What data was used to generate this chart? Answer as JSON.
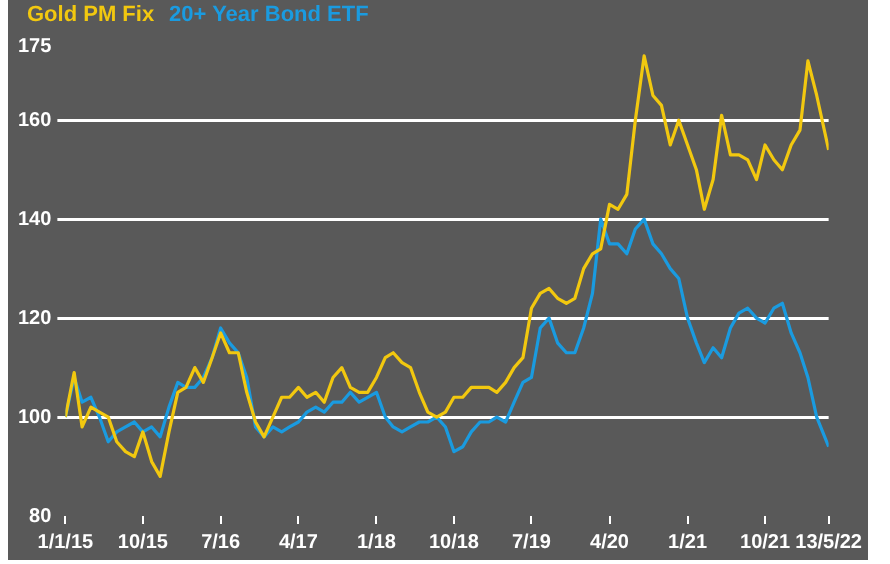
{
  "chart_data": {
    "type": "line",
    "legend": "top left",
    "grid": "y",
    "xlim": [
      "2015-01-01",
      "2022-05-13"
    ],
    "ylim": [
      80,
      175
    ],
    "yticks": [
      80,
      100,
      120,
      140,
      160,
      175
    ],
    "xticks": [
      {
        "value": "2015-01-01",
        "label": "1/1/15"
      },
      {
        "value": "2015-10-01",
        "label": "10/15"
      },
      {
        "value": "2016-07-01",
        "label": "7/16"
      },
      {
        "value": "2017-04-01",
        "label": "4/17"
      },
      {
        "value": "2018-01-01",
        "label": "1/18"
      },
      {
        "value": "2018-10-01",
        "label": "10/18"
      },
      {
        "value": "2019-07-01",
        "label": "7/19"
      },
      {
        "value": "2020-04-01",
        "label": "4/20"
      },
      {
        "value": "2021-01-01",
        "label": "1/21"
      },
      {
        "value": "2021-10-01",
        "label": "10/21"
      },
      {
        "value": "2022-05-13",
        "label": "13/5/22"
      }
    ],
    "x": [
      "2015-01",
      "2015-02",
      "2015-03",
      "2015-04",
      "2015-05",
      "2015-06",
      "2015-07",
      "2015-08",
      "2015-09",
      "2015-10",
      "2015-11",
      "2015-12",
      "2016-01",
      "2016-02",
      "2016-03",
      "2016-04",
      "2016-05",
      "2016-06",
      "2016-07",
      "2016-08",
      "2016-09",
      "2016-10",
      "2016-11",
      "2016-12",
      "2017-01",
      "2017-02",
      "2017-03",
      "2017-04",
      "2017-05",
      "2017-06",
      "2017-07",
      "2017-08",
      "2017-09",
      "2017-10",
      "2017-11",
      "2017-12",
      "2018-01",
      "2018-02",
      "2018-03",
      "2018-04",
      "2018-05",
      "2018-06",
      "2018-07",
      "2018-08",
      "2018-09",
      "2018-10",
      "2018-11",
      "2018-12",
      "2019-01",
      "2019-02",
      "2019-03",
      "2019-04",
      "2019-05",
      "2019-06",
      "2019-07",
      "2019-08",
      "2019-09",
      "2019-10",
      "2019-11",
      "2019-12",
      "2020-01",
      "2020-02",
      "2020-03",
      "2020-04",
      "2020-05",
      "2020-06",
      "2020-07",
      "2020-08",
      "2020-09",
      "2020-10",
      "2020-11",
      "2020-12",
      "2021-01",
      "2021-02",
      "2021-03",
      "2021-04",
      "2021-05",
      "2021-06",
      "2021-07",
      "2021-08",
      "2021-09",
      "2021-10",
      "2021-11",
      "2021-12",
      "2022-01",
      "2022-02",
      "2022-03",
      "2022-04",
      "2022-05-13"
    ],
    "series": [
      {
        "name": "Gold PM Fix",
        "color": "#f2c80f",
        "values": [
          100,
          109,
          98,
          102,
          101,
          100,
          95,
          93,
          92,
          97,
          91,
          88,
          97,
          105,
          106,
          110,
          107,
          112,
          117,
          113,
          113,
          105,
          99,
          96,
          100,
          104,
          104,
          106,
          104,
          105,
          103,
          108,
          110,
          106,
          105,
          105,
          108,
          112,
          113,
          111,
          110,
          105,
          101,
          100,
          101,
          104,
          104,
          106,
          106,
          106,
          105,
          107,
          110,
          112,
          122,
          125,
          126,
          124,
          123,
          124,
          130,
          133,
          134,
          143,
          142,
          145,
          160,
          173,
          165,
          163,
          155,
          160,
          155,
          150,
          142,
          148,
          161,
          153,
          153,
          152,
          148,
          155,
          152,
          150,
          155,
          158,
          172,
          165,
          154
        ]
      },
      {
        "name": "20+ Year Bond ETF",
        "color": "#1a9be0",
        "values": [
          100,
          108,
          103,
          104,
          100,
          95,
          97,
          98,
          99,
          97,
          98,
          96,
          102,
          107,
          106,
          106,
          108,
          112,
          118,
          115,
          113,
          108,
          98,
          96,
          98,
          97,
          98,
          99,
          101,
          102,
          101,
          103,
          103,
          105,
          103,
          104,
          105,
          100,
          98,
          97,
          98,
          99,
          99,
          100,
          98,
          93,
          94,
          97,
          99,
          99,
          100,
          99,
          103,
          107,
          108,
          118,
          120,
          115,
          113,
          113,
          118,
          125,
          140,
          135,
          135,
          133,
          138,
          140,
          135,
          133,
          130,
          128,
          120,
          115,
          111,
          114,
          112,
          118,
          121,
          122,
          120,
          119,
          122,
          123,
          117,
          113,
          108,
          100,
          94
        ]
      }
    ]
  }
}
